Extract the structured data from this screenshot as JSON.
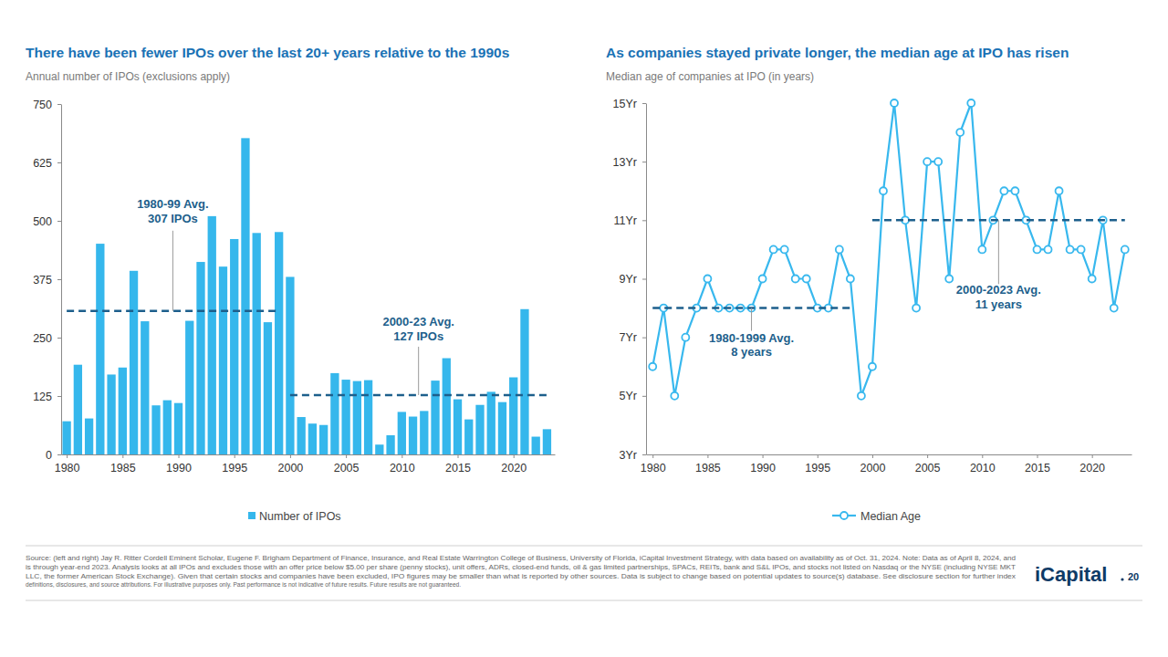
{
  "chart_data": [
    {
      "type": "bar",
      "title": "There have been fewer IPOs over the last 20+ years relative to the 1990s",
      "subtitle": "Annual number of IPOs (exclusions apply)",
      "x": [
        1980,
        1981,
        1982,
        1983,
        1984,
        1985,
        1986,
        1987,
        1988,
        1989,
        1990,
        1991,
        1992,
        1993,
        1994,
        1995,
        1996,
        1997,
        1998,
        1999,
        2000,
        2001,
        2002,
        2003,
        2004,
        2005,
        2006,
        2007,
        2008,
        2009,
        2010,
        2011,
        2012,
        2013,
        2014,
        2015,
        2016,
        2017,
        2018,
        2019,
        2020,
        2021,
        2022,
        2023
      ],
      "series": [
        {
          "name": "Number of IPOs",
          "color": "#35b7ec",
          "values": [
            71,
            192,
            77,
            451,
            171,
            186,
            393,
            285,
            105,
            116,
            110,
            286,
            412,
            510,
            402,
            461,
            677,
            474,
            283,
            476,
            380,
            80,
            66,
            63,
            174,
            160,
            157,
            159,
            21,
            41,
            91,
            81,
            93,
            158,
            206,
            118,
            75,
            106,
            134,
            112,
            165,
            311,
            38,
            54
          ]
        }
      ],
      "xlim": [
        1979.5,
        2023.7
      ],
      "xticks": [
        1980,
        1985,
        1990,
        1995,
        2000,
        2005,
        2010,
        2015,
        2020
      ],
      "ylim": [
        0,
        750
      ],
      "yticks": [
        0,
        125,
        250,
        375,
        500,
        625,
        750
      ],
      "reference_lines": [
        {
          "value": 307,
          "x_range": [
            1980,
            1999
          ],
          "label": [
            "1980-99 Avg.",
            "307 IPOs"
          ],
          "color": "#1d5f8c",
          "line_style": "dashed"
        },
        {
          "value": 127,
          "x_range": [
            2000,
            2023
          ],
          "label": [
            "2000-23 Avg.",
            "127 IPOs"
          ],
          "color": "#1d5f8c",
          "line_style": "dashed"
        }
      ],
      "legend": "bottom"
    },
    {
      "type": "line",
      "title": "As companies stayed private longer, the median age at IPO has risen",
      "subtitle": "Median age of companies at IPO (in years)",
      "x": [
        1980,
        1981,
        1982,
        1983,
        1984,
        1985,
        1986,
        1987,
        1988,
        1989,
        1990,
        1991,
        1992,
        1993,
        1994,
        1995,
        1996,
        1997,
        1998,
        1999,
        2000,
        2001,
        2002,
        2003,
        2004,
        2005,
        2006,
        2007,
        2008,
        2009,
        2010,
        2011,
        2012,
        2013,
        2014,
        2015,
        2016,
        2017,
        2018,
        2019,
        2020,
        2021,
        2022,
        2023
      ],
      "series": [
        {
          "name": "Median Age",
          "color": "#38b8ee",
          "marker": "circle",
          "values": [
            6,
            8,
            5,
            7,
            8,
            9,
            8,
            8,
            8,
            8,
            9,
            10,
            10,
            9,
            9,
            8,
            8,
            10,
            9,
            5,
            6,
            12,
            15,
            11,
            8,
            13,
            13,
            9,
            14,
            15,
            10,
            11,
            12,
            12,
            11,
            10,
            10,
            12,
            10,
            10,
            9,
            11,
            8,
            10
          ]
        }
      ],
      "xlim": [
        1979.4,
        2023.6
      ],
      "xticks": [
        1980,
        1985,
        1990,
        1995,
        2000,
        2005,
        2010,
        2015,
        2020
      ],
      "ylim": [
        3,
        15
      ],
      "yticks": [
        {
          "value": 3,
          "label": "3Yr"
        },
        {
          "value": 5,
          "label": "5Yr"
        },
        {
          "value": 7,
          "label": "7Yr"
        },
        {
          "value": 9,
          "label": "9Yr"
        },
        {
          "value": 11,
          "label": "11Yr"
        },
        {
          "value": 13,
          "label": "13Yr"
        },
        {
          "value": 15,
          "label": "15Yr"
        }
      ],
      "reference_lines": [
        {
          "value": 8,
          "x_range": [
            1980,
            1998
          ],
          "label": [
            "1980-1999 Avg.",
            "8 years"
          ],
          "color": "#1d5f8c",
          "line_style": "dashed"
        },
        {
          "value": 11,
          "x_range": [
            2000,
            2023
          ],
          "label": [
            "2000-2023 Avg.",
            "11 years"
          ],
          "color": "#1d5f8c",
          "line_style": "dashed"
        }
      ],
      "legend": "bottom"
    }
  ],
  "footer": {
    "source": [
      "Source: (left and right) Jay R. Ritter Cordell Eminent Scholar, Eugene F. Brigham Department of Finance, Insurance, and Real Estate Warrington College of Business, University of Florida, iCapital Investment Strategy, with data based on availability as of Oct. 31, 2024. Note: Data as of April 8, 2024, and",
      "is through year-end 2023. Analysis looks at all IPOs and excludes those with an offer price below $5.00 per share (penny stocks), unit offers, ADRs, closed-end funds, oil & gas limited partnerships, SPACs, REITs, bank and S&L IPOs, and stocks not listed on Nasdaq or the NYSE (including NYSE MKT",
      "LLC, the former American Stock Exchange). Given that certain stocks and companies have been excluded, IPO figures may be smaller than what is reported by other sources. Data is subject to change based on potential updates to source(s) database. See disclosure section for further index",
      "definitions, disclosures, and source attributions. For illustrative purposes only. Past performance is not indicative of future results. Future results are not guaranteed."
    ],
    "logo": "iCapital",
    "page": "20"
  }
}
